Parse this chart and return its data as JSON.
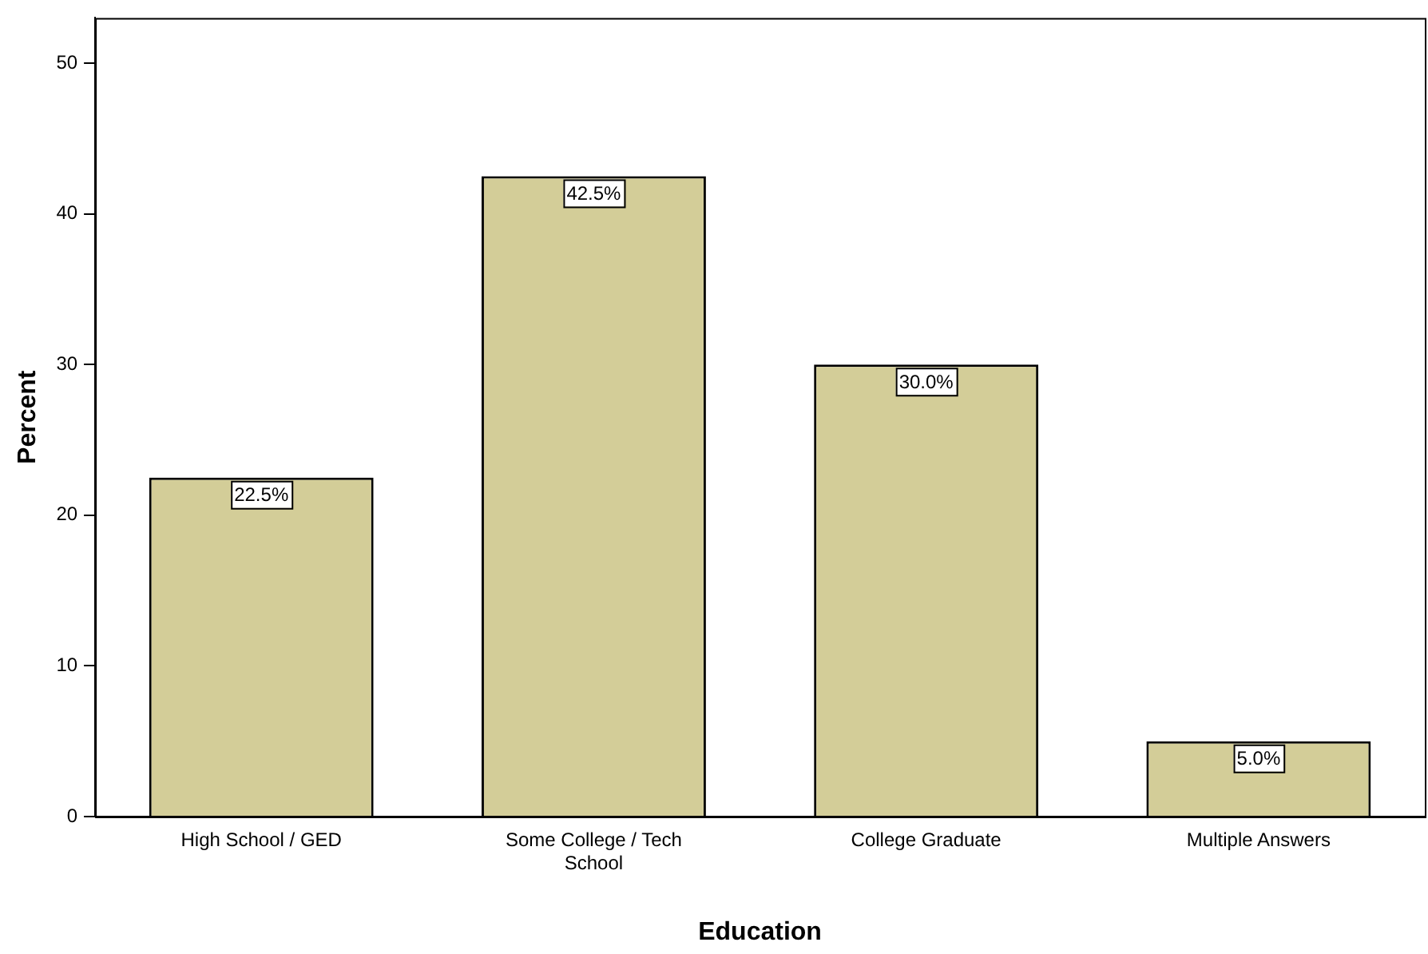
{
  "chart_data": {
    "type": "bar",
    "xlabel": "Education",
    "ylabel": "Percent",
    "categories": [
      "High School / GED",
      "Some College / Tech School",
      "College Graduate",
      "Multiple Answers"
    ],
    "values": [
      22.5,
      42.5,
      30.0,
      5.0
    ],
    "value_labels": [
      "22.5%",
      "42.5%",
      "30.0%",
      "5.0%"
    ],
    "color": "#d3cd98",
    "ylim": [
      0,
      53
    ],
    "yticks": [
      0,
      10,
      20,
      30,
      40,
      50
    ],
    "grid": false,
    "legend": false
  }
}
